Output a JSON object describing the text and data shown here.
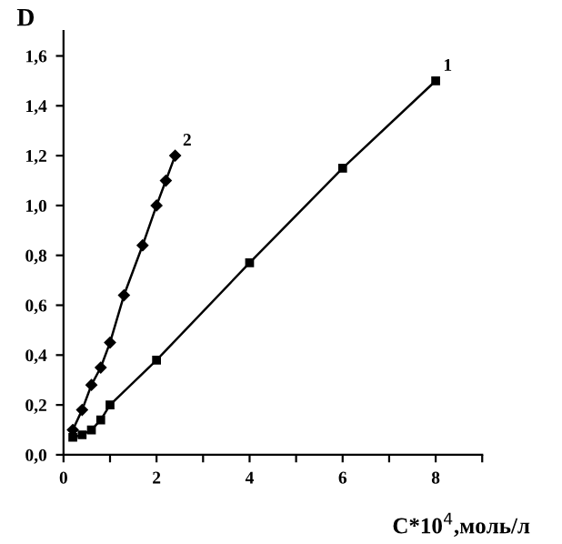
{
  "chart_data": {
    "type": "line",
    "ylabel": "D",
    "xlabel": "C*10$^{4}$,моль/л",
    "line_style": "solid",
    "grid": false,
    "legend": false,
    "xlim": [
      0,
      9
    ],
    "ylim": [
      0,
      1.7
    ],
    "xticks": [
      0,
      {
        "value": 1,
        "label": null
      },
      2,
      {
        "value": 3,
        "label": null
      },
      4,
      {
        "value": 5,
        "label": null
      },
      6,
      {
        "value": 7,
        "label": null
      },
      8,
      {
        "value": 9,
        "label": null
      }
    ],
    "yticks": [
      {
        "value": 0,
        "label": "0,0"
      },
      {
        "value": 0.2,
        "label": "0,2"
      },
      {
        "value": 0.4,
        "label": "0,4"
      },
      {
        "value": 0.6,
        "label": "0,6"
      },
      {
        "value": 0.8,
        "label": "0,8"
      },
      {
        "value": 1.0,
        "label": "1,0"
      },
      {
        "value": 1.2,
        "label": "1,2"
      },
      {
        "value": 1.4,
        "label": "1,4"
      },
      {
        "value": 1.6,
        "label": "1,6"
      }
    ],
    "series": [
      {
        "name": "1",
        "color": "#000000",
        "marker": "square",
        "x": [
          0.2,
          0.4,
          0.6,
          0.8,
          1,
          2,
          4,
          6,
          8
        ],
        "values": [
          0.07,
          0.08,
          0.1,
          0.14,
          0.2,
          0.38,
          0.77,
          1.15,
          1.5
        ]
      },
      {
        "name": "2",
        "color": "#000000",
        "marker": "diamond",
        "x": [
          0.2,
          0.4,
          0.6,
          0.8,
          1,
          1.3,
          1.7,
          2,
          2.2,
          2.4
        ],
        "values": [
          0.1,
          0.18,
          0.28,
          0.35,
          0.45,
          0.64,
          0.84,
          1.0,
          1.1,
          1.2
        ]
      }
    ]
  }
}
